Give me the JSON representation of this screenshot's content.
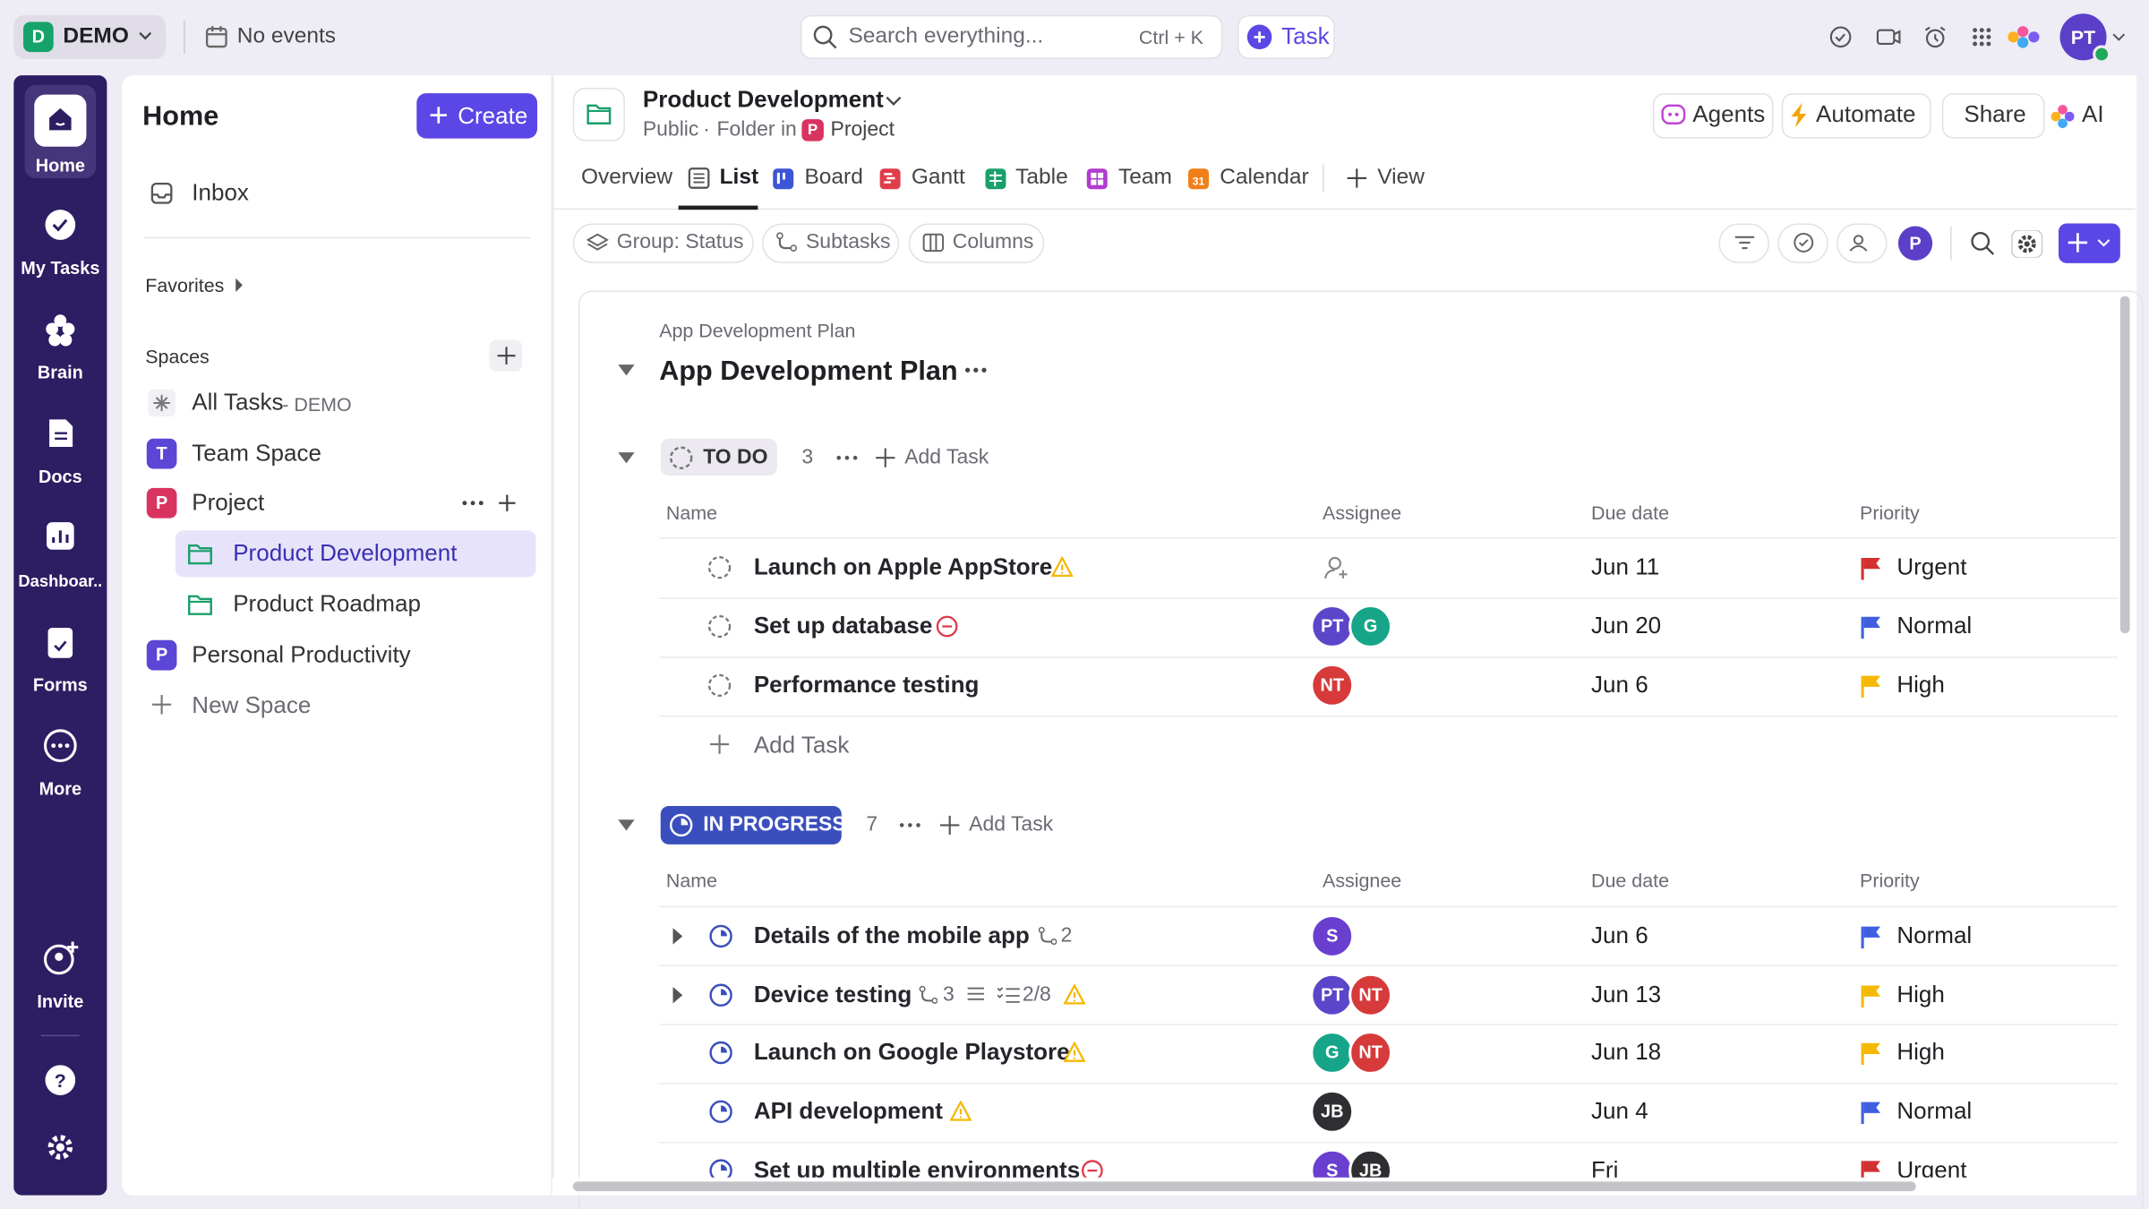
{
  "topbar": {
    "workspace_initial": "D",
    "workspace": "DEMO",
    "events": "No events",
    "search": "Search everything...",
    "shortcut": "Ctrl + K",
    "task_button": "Task",
    "avatar": "PT"
  },
  "rail": {
    "items": [
      "Home",
      "My Tasks",
      "Brain",
      "Docs",
      "Dashboar..",
      "Forms",
      "More"
    ],
    "invite": "Invite"
  },
  "sidebar": {
    "title": "Home",
    "create": "Create",
    "inbox": "Inbox",
    "favorites": "Favorites",
    "spaces_label": "Spaces",
    "all_tasks": "All Tasks",
    "all_tasks_suffix": "- DEMO",
    "spaces": [
      {
        "initial": "T",
        "name": "Team Space",
        "color": "#5b46d6"
      },
      {
        "initial": "P",
        "name": "Project",
        "color": "#d8345f"
      },
      {
        "initial": "P",
        "name": "Personal Productivity",
        "color": "#5b46d6"
      }
    ],
    "folders": [
      "Product Development",
      "Product Roadmap"
    ],
    "new_space": "New Space"
  },
  "header": {
    "title": "Product Development",
    "visibility": "Public",
    "folder_in": "Folder in",
    "parent_initial": "P",
    "parent": "Project",
    "actions": [
      "Agents",
      "Automate",
      "Share",
      "AI"
    ]
  },
  "tabs": [
    "Overview",
    "List",
    "Board",
    "Gantt",
    "Table",
    "Team",
    "Calendar",
    "View"
  ],
  "toolbar": {
    "buttons": [
      "Group: Status",
      "Subtasks",
      "Columns"
    ],
    "avatar": "P"
  },
  "list": {
    "breadcrumb": "App Development Plan",
    "title": "App Development Plan",
    "columns": [
      "Name",
      "Assignee",
      "Due date",
      "Priority"
    ],
    "groups": [
      {
        "status": "TO DO",
        "count": 3,
        "add_task": "Add Task",
        "add_row": "Add Task",
        "tasks": [
          {
            "name": "Launch on Apple AppStore",
            "assignees": [],
            "due": "Jun 11",
            "priority": "Urgent"
          },
          {
            "name": "Set up database",
            "assignees": [
              {
                "initials": "PT",
                "color": "#5b46c9"
              },
              {
                "initials": "G",
                "color": "#17a589"
              }
            ],
            "due": "Jun 20",
            "priority": "Normal"
          },
          {
            "name": "Performance testing",
            "assignees": [
              {
                "initials": "NT",
                "color": "#d63a3a"
              }
            ],
            "due": "Jun 6",
            "priority": "High"
          }
        ]
      },
      {
        "status": "IN PROGRESS",
        "count": 7,
        "add_task": "Add Task",
        "tasks": [
          {
            "name": "Details of the mobile app",
            "subtasks": 2,
            "assignees": [
              {
                "initials": "S",
                "color": "#6a3fd0"
              }
            ],
            "due": "Jun 6",
            "priority": "Normal"
          },
          {
            "name": "Device testing",
            "subtasks": 3,
            "checklist": "2/8",
            "assignees": [
              {
                "initials": "PT",
                "color": "#5b46c9"
              },
              {
                "initials": "NT",
                "color": "#d63a3a"
              }
            ],
            "due": "Jun 13",
            "priority": "High"
          },
          {
            "name": "Launch on Google Playstore",
            "assignees": [
              {
                "initials": "G",
                "color": "#17a589"
              },
              {
                "initials": "NT",
                "color": "#d63a3a"
              }
            ],
            "due": "Jun 18",
            "priority": "High"
          },
          {
            "name": "API development",
            "assignees": [
              {
                "initials": "JB",
                "color": "#2f2f33"
              }
            ],
            "due": "Jun 4",
            "priority": "Normal"
          },
          {
            "name": "Set up multiple environments",
            "assignees": [
              {
                "initials": "S",
                "color": "#6a3fd0"
              },
              {
                "initials": "JB",
                "color": "#2f2f33"
              }
            ],
            "due": "Fri",
            "priority": "Urgent"
          }
        ]
      }
    ]
  }
}
